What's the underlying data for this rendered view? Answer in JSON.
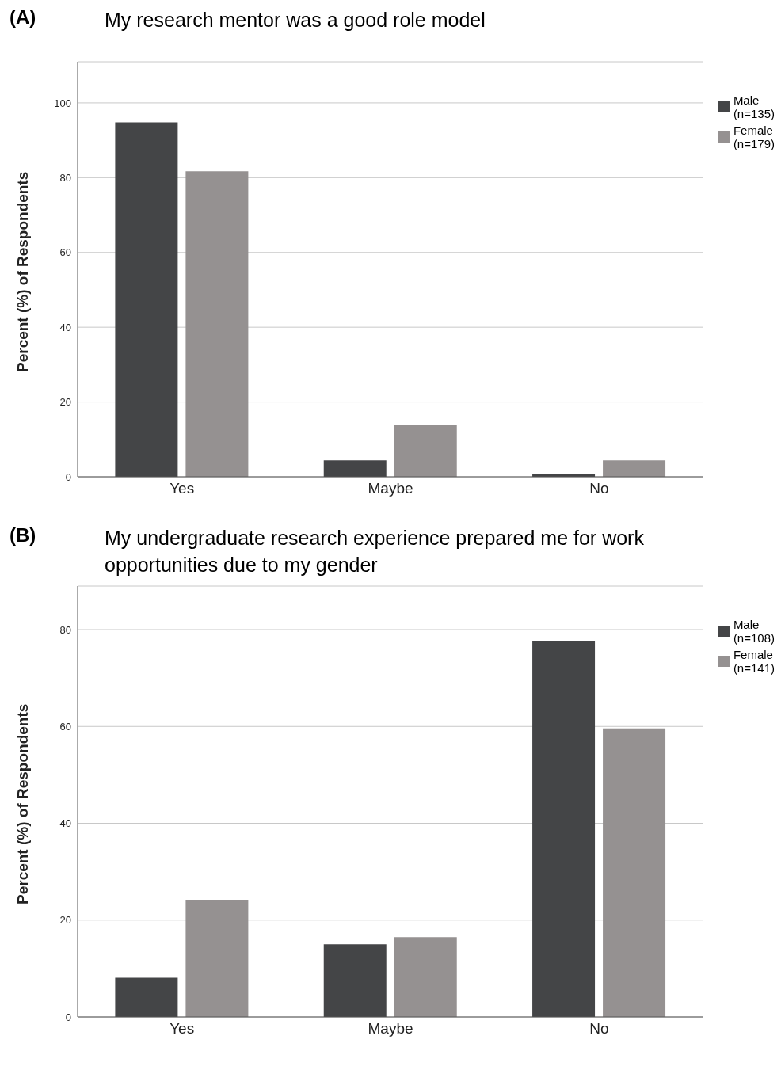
{
  "chart_data": [
    {
      "type": "bar",
      "title": "My research mentor was a good role model",
      "annotations": [
        "(A)"
      ],
      "ylabel": "Percent (%) of Respondents",
      "categories": [
        "Yes",
        "Maybe",
        "No"
      ],
      "series": [
        {
          "name": "Male\n(n=135)",
          "color": "#444547",
          "values": [
            94.8,
            4.4,
            0.7
          ]
        },
        {
          "name": "Female\n(n=179)",
          "color": "#959191",
          "values": [
            81.7,
            13.9,
            4.4
          ]
        }
      ],
      "ylim": [
        0,
        111
      ],
      "yticks": [
        0,
        20,
        40,
        60,
        80,
        100
      ],
      "grid": "y",
      "legend": "top right"
    },
    {
      "type": "bar",
      "title": "My undergraduate research experience prepared me for work opportunities due to my gender",
      "annotations": [
        "(B)"
      ],
      "ylabel": "Percent (%) of Respondents",
      "categories": [
        "Yes",
        "Maybe",
        "No"
      ],
      "series": [
        {
          "name": "Male\n(n=108)",
          "color": "#444547",
          "values": [
            8.1,
            15.0,
            77.7
          ]
        },
        {
          "name": "Female\n(n=141)",
          "color": "#959191",
          "values": [
            24.2,
            16.5,
            59.6
          ]
        }
      ],
      "ylim": [
        0,
        89
      ],
      "yticks": [
        0,
        20,
        40,
        60,
        80
      ],
      "grid": "y",
      "legend": "top right"
    }
  ]
}
